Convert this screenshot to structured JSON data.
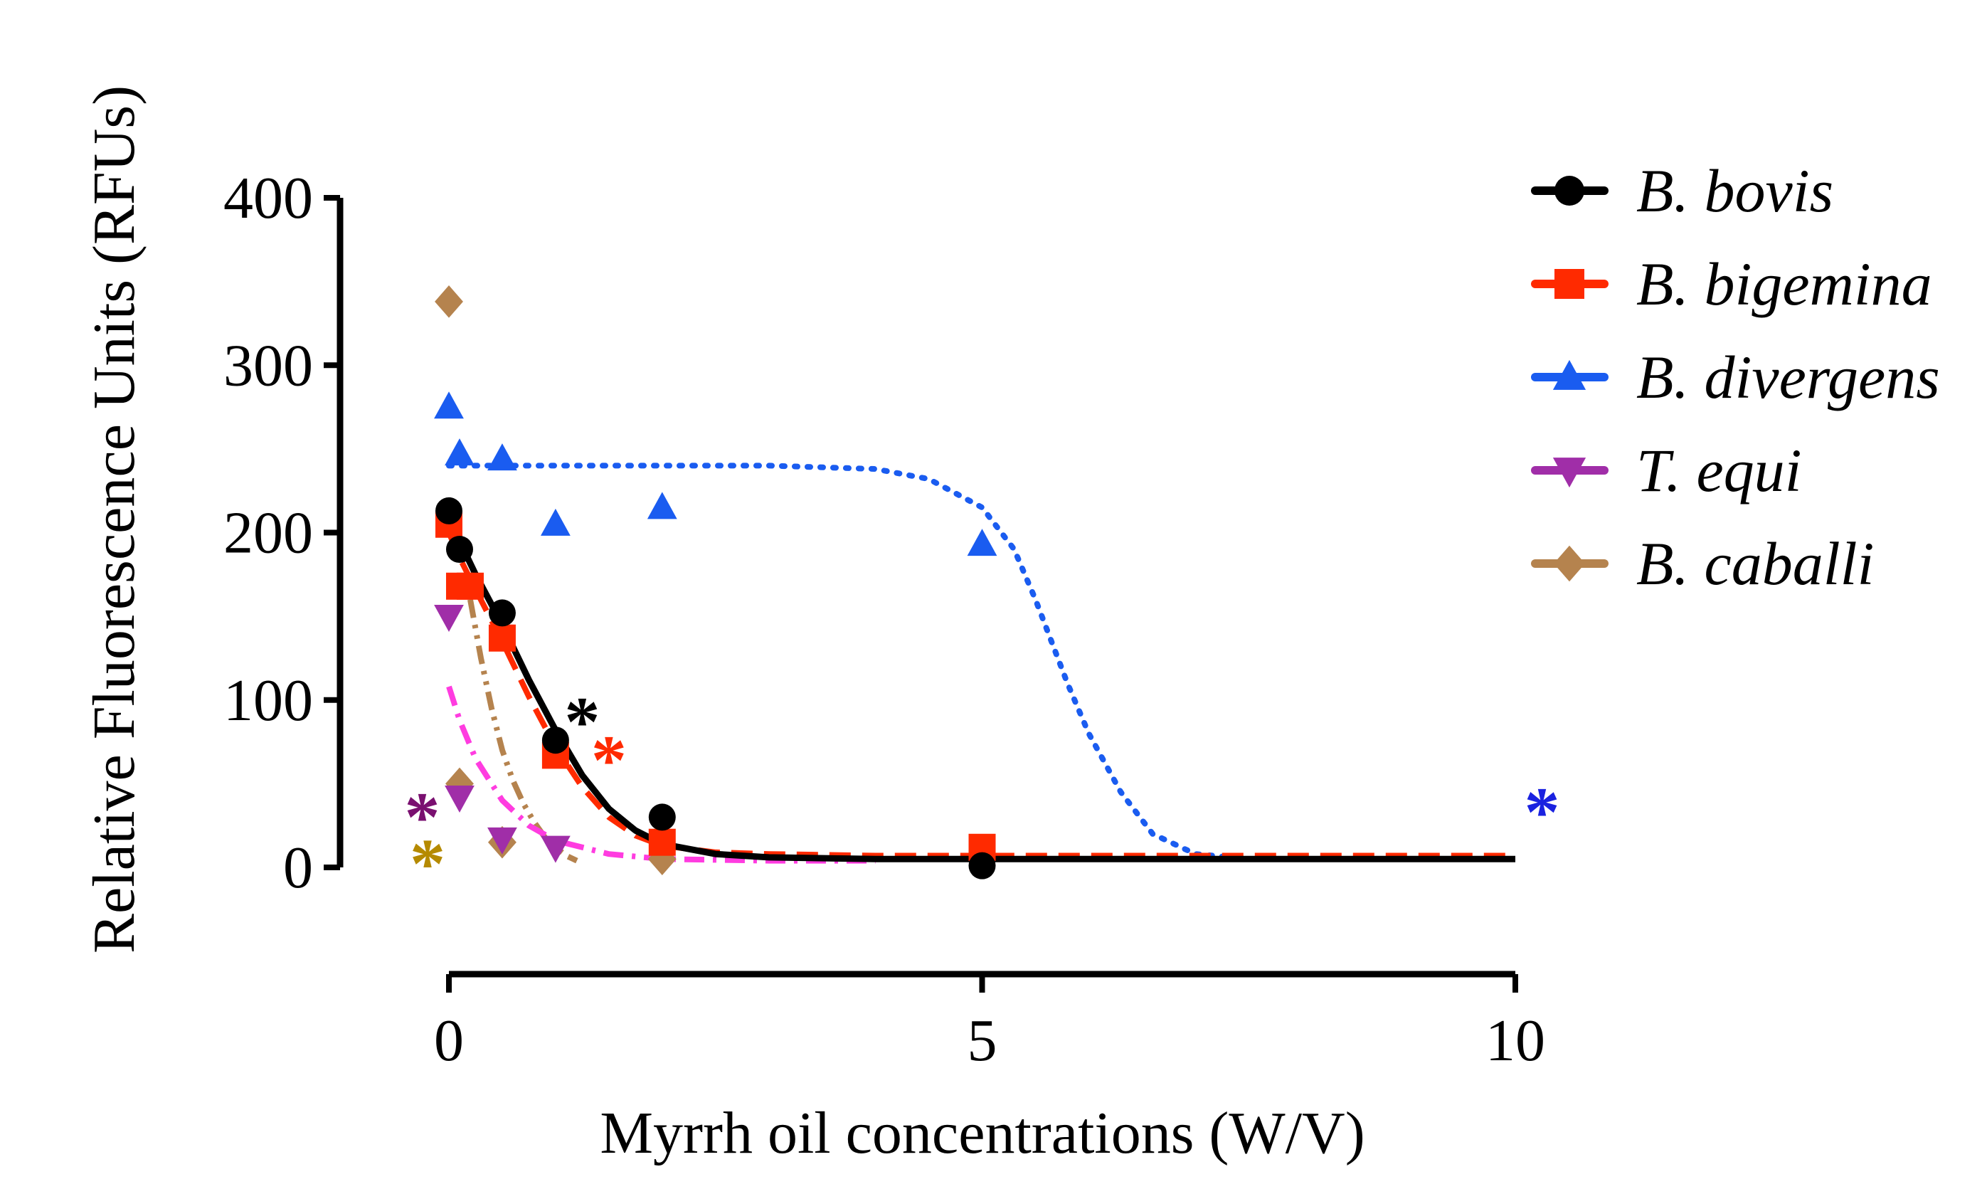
{
  "chart_data": {
    "type": "scatter",
    "title": "",
    "xlabel": "Myrrh oil concentrations (W/V)",
    "ylabel": "Relative Fluorescence Units (RFUs)",
    "xlim": [
      0,
      10
    ],
    "ylim": [
      0,
      400
    ],
    "xticks": [
      0,
      5,
      10
    ],
    "yticks": [
      0,
      100,
      200,
      300,
      400
    ],
    "legend_position": "top-right",
    "series": [
      {
        "name": "B. bovis",
        "color": "#000000",
        "marker": "circle",
        "line_style": "solid",
        "points": [
          [
            0,
            213
          ],
          [
            0.1,
            190
          ],
          [
            0.5,
            152
          ],
          [
            1,
            76
          ],
          [
            2,
            30
          ],
          [
            5,
            1
          ]
        ],
        "fit": [
          [
            0,
            213
          ],
          [
            0.1,
            195
          ],
          [
            0.25,
            175
          ],
          [
            0.5,
            145
          ],
          [
            0.75,
            112
          ],
          [
            1,
            82
          ],
          [
            1.25,
            55
          ],
          [
            1.5,
            35
          ],
          [
            1.75,
            22
          ],
          [
            2,
            14
          ],
          [
            2.5,
            8
          ],
          [
            3,
            6
          ],
          [
            4,
            5
          ],
          [
            6,
            5
          ],
          [
            10,
            5
          ]
        ]
      },
      {
        "name": "B. bigemina",
        "color": "#ff2a00",
        "marker": "square",
        "line_style": "dashed",
        "points": [
          [
            0,
            205
          ],
          [
            0.1,
            168
          ],
          [
            0.2,
            168
          ],
          [
            0.5,
            137
          ],
          [
            1,
            67
          ],
          [
            2,
            15
          ],
          [
            5,
            12
          ]
        ],
        "fit": [
          [
            0,
            200
          ],
          [
            0.1,
            185
          ],
          [
            0.25,
            166
          ],
          [
            0.5,
            135
          ],
          [
            0.75,
            102
          ],
          [
            1,
            72
          ],
          [
            1.25,
            48
          ],
          [
            1.5,
            30
          ],
          [
            1.75,
            19
          ],
          [
            2,
            13
          ],
          [
            2.5,
            9
          ],
          [
            3,
            8
          ],
          [
            4,
            7
          ],
          [
            6,
            7
          ],
          [
            10,
            7
          ]
        ]
      },
      {
        "name": "B. divergens",
        "color": "#1a5cf0",
        "marker": "triangle-up",
        "line_style": "dotted",
        "points": [
          [
            0,
            275
          ],
          [
            0.1,
            247
          ],
          [
            0.5,
            244
          ],
          [
            1,
            205
          ],
          [
            2,
            215
          ],
          [
            5,
            193
          ]
        ],
        "fit": [
          [
            0,
            240
          ],
          [
            2,
            240
          ],
          [
            3,
            240
          ],
          [
            4,
            238
          ],
          [
            4.5,
            232
          ],
          [
            5,
            215
          ],
          [
            5.3,
            190
          ],
          [
            5.5,
            160
          ],
          [
            5.8,
            110
          ],
          [
            6,
            80
          ],
          [
            6.3,
            45
          ],
          [
            6.6,
            20
          ],
          [
            7,
            8
          ],
          [
            7.5,
            5
          ],
          [
            8,
            5
          ],
          [
            10,
            5
          ]
        ]
      },
      {
        "name": "T. equi",
        "color": "#a02ea8",
        "marker": "triangle-down",
        "line_style": "dashdot",
        "fit_color": "#ff3ce0",
        "points": [
          [
            0,
            150
          ],
          [
            0.1,
            42
          ],
          [
            0.5,
            17
          ],
          [
            1,
            12
          ]
        ],
        "fit": [
          [
            0,
            108
          ],
          [
            0.1,
            88
          ],
          [
            0.25,
            65
          ],
          [
            0.5,
            40
          ],
          [
            0.75,
            25
          ],
          [
            1,
            16
          ],
          [
            1.5,
            8
          ],
          [
            2,
            5
          ],
          [
            3,
            4
          ],
          [
            4,
            4
          ]
        ]
      },
      {
        "name": "B. caballi",
        "color": "#b5834e",
        "marker": "diamond",
        "line_style": "dashdotdot",
        "points": [
          [
            0,
            338
          ],
          [
            0.1,
            50
          ],
          [
            0.5,
            15
          ],
          [
            2,
            5
          ]
        ],
        "fit": [
          [
            0.2,
            160
          ],
          [
            0.3,
            125
          ],
          [
            0.4,
            95
          ],
          [
            0.5,
            70
          ],
          [
            0.6,
            52
          ],
          [
            0.7,
            38
          ],
          [
            0.8,
            27
          ],
          [
            0.9,
            18
          ],
          [
            1,
            12
          ],
          [
            1.1,
            7
          ],
          [
            1.2,
            4
          ]
        ]
      }
    ],
    "annotations": [
      {
        "text": "*",
        "x": 1.25,
        "y": 90,
        "color": "#000000"
      },
      {
        "text": "*",
        "x": 1.5,
        "y": 67,
        "color": "#ff2a00"
      },
      {
        "text": "*",
        "x": -0.25,
        "y": 33,
        "color": "#7a1070"
      },
      {
        "text": "*",
        "x": -0.2,
        "y": 5,
        "color": "#b58a00"
      },
      {
        "text": "*",
        "x": 10.25,
        "y": 36,
        "color": "#1a22e0"
      }
    ]
  }
}
